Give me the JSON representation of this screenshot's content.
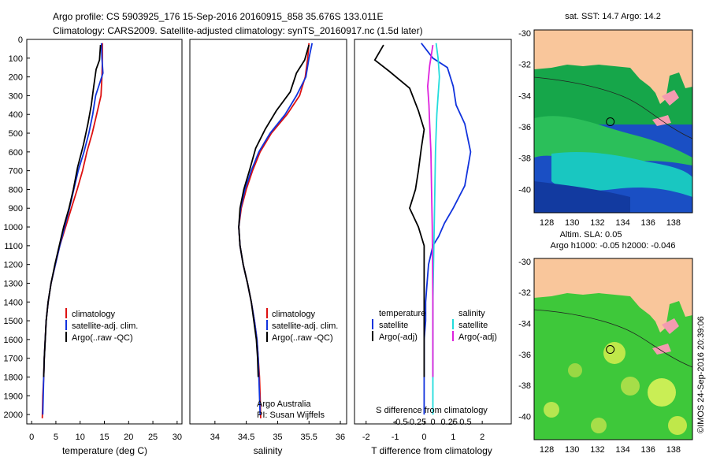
{
  "header": {
    "title_line1": "Argo profile: CS 5903925_176 15-Sep-2016 20160915_858 35.676S 133.011E",
    "title_line2": "Climatology: CARS2009. Satellite-adjusted climatology: synTS_20160917.nc (1.5d later)"
  },
  "colors": {
    "climatology": "#dd1111",
    "satellite": "#1133dd",
    "argo": "#000000",
    "salinity_satellite": "#22dddd",
    "salinity_argo": "#dd22dd",
    "land": "#f9c69b"
  },
  "chart_data": [
    {
      "type": "line",
      "id": "temperature",
      "xlabel": "temperature (deg C)",
      "xlim": [
        -1,
        31
      ],
      "ylim": [
        2050,
        0
      ],
      "xticks": [
        0,
        5,
        10,
        15,
        20,
        25,
        30
      ],
      "yticks": [
        0,
        100,
        200,
        300,
        400,
        500,
        600,
        700,
        800,
        900,
        1000,
        1100,
        1200,
        1300,
        1400,
        1500,
        1600,
        1700,
        1800,
        1900,
        2000
      ],
      "legend": [
        "climatology",
        "satellite-adj. clim.",
        "Argo(..raw -QC)"
      ],
      "legend_position": "lower-center",
      "series": [
        {
          "name": "climatology",
          "x": [
            14.6,
            14.6,
            14.5,
            14.3,
            13.4,
            12.5,
            11.4,
            10.5,
            9.4,
            8.2,
            7.0,
            5.8,
            4.9,
            4.0,
            3.4,
            3.0,
            2.8,
            2.6,
            2.5,
            2.3,
            2.2
          ],
          "y": [
            20,
            100,
            200,
            300,
            400,
            500,
            600,
            700,
            800,
            900,
            1000,
            1100,
            1200,
            1300,
            1400,
            1500,
            1600,
            1700,
            1800,
            1900,
            2020
          ]
        },
        {
          "name": "satellite-adj. clim.",
          "x": [
            14.4,
            14.5,
            14.7,
            13.2,
            12.6,
            11.8,
            10.8,
            9.6,
            8.7,
            7.8,
            6.8,
            5.8,
            4.9,
            4.0,
            3.4,
            3.0,
            2.8,
            2.6,
            2.5,
            2.4,
            2.3
          ],
          "y": [
            20,
            100,
            180,
            300,
            400,
            500,
            600,
            700,
            800,
            900,
            1000,
            1100,
            1200,
            1300,
            1400,
            1500,
            1600,
            1700,
            1800,
            1900,
            2000
          ]
        },
        {
          "name": "Argo(..raw -QC)",
          "x": [
            14.2,
            14.0,
            13.3,
            12.8,
            12.3,
            11.6,
            10.7,
            9.5,
            8.6,
            7.7,
            6.6,
            5.7,
            4.8,
            4.0,
            3.4,
            3.0,
            2.8,
            2.6,
            2.5
          ],
          "y": [
            30,
            110,
            160,
            250,
            350,
            450,
            560,
            680,
            800,
            900,
            1000,
            1100,
            1200,
            1300,
            1400,
            1500,
            1600,
            1700,
            1800
          ]
        }
      ]
    },
    {
      "type": "line",
      "id": "salinity",
      "xlabel": "salinity",
      "xlim": [
        33.6,
        36.1
      ],
      "ylim": [
        2050,
        0
      ],
      "xticks": [
        34,
        34.5,
        35,
        35.5,
        36
      ],
      "legend": [
        "climatology",
        "satellite-adj. clim.",
        "Argo(..raw -QC)"
      ],
      "legend_position": "lower-center",
      "annotation": [
        "Argo Australia",
        "PI: Susan Wijffels"
      ],
      "series": [
        {
          "name": "climatology",
          "x": [
            35.5,
            35.48,
            35.44,
            35.35,
            35.15,
            34.9,
            34.72,
            34.6,
            34.5,
            34.42,
            34.38,
            34.4,
            34.45,
            34.52,
            34.58,
            34.63,
            34.67,
            34.69,
            34.71,
            34.72,
            34.73
          ],
          "y": [
            20,
            100,
            200,
            300,
            400,
            500,
            600,
            700,
            800,
            900,
            1000,
            1100,
            1200,
            1300,
            1400,
            1500,
            1600,
            1700,
            1800,
            1900,
            2020
          ]
        },
        {
          "name": "satellite-adj. clim.",
          "x": [
            35.55,
            35.5,
            35.45,
            35.3,
            35.12,
            34.88,
            34.7,
            34.58,
            34.48,
            34.41,
            34.38,
            34.4,
            34.45,
            34.52,
            34.58,
            34.63,
            34.67,
            34.69,
            34.7,
            34.71,
            34.72
          ],
          "y": [
            20,
            100,
            200,
            300,
            400,
            500,
            600,
            700,
            800,
            900,
            1000,
            1100,
            1200,
            1300,
            1400,
            1500,
            1600,
            1700,
            1800,
            1900,
            2000
          ]
        },
        {
          "name": "Argo(..raw -QC)",
          "x": [
            35.5,
            35.43,
            35.3,
            35.2,
            34.98,
            34.8,
            34.65,
            34.55,
            34.46,
            34.4,
            34.38,
            34.4,
            34.45,
            34.52,
            34.58,
            34.62,
            34.66,
            34.68,
            34.69
          ],
          "y": [
            30,
            110,
            180,
            280,
            380,
            480,
            580,
            700,
            800,
            900,
            1000,
            1100,
            1200,
            1300,
            1400,
            1500,
            1600,
            1700,
            1800
          ]
        }
      ]
    },
    {
      "type": "line",
      "id": "differences",
      "xlabel": "T difference from climatology",
      "xlabel_top": "S difference from climatology",
      "xlim": [
        -2.4,
        3.0
      ],
      "ylim": [
        2050,
        0
      ],
      "xticks": [
        -2,
        -1,
        0,
        1,
        2
      ],
      "xticks_secondary": [
        -0.5,
        -0.25,
        0,
        0.25,
        0.5
      ],
      "legend_groups": [
        {
          "title": "temperature",
          "entries": [
            "satellite",
            "Argo(-adj)"
          ]
        },
        {
          "title": "salinity",
          "entries": [
            "satellite",
            "Argo(-adj)"
          ]
        }
      ],
      "series": [
        {
          "name": "temperature satellite",
          "x": [
            -0.1,
            0.3,
            0.8,
            1.0,
            1.1,
            1.4,
            1.6,
            1.4,
            1.0,
            0.7,
            0.5,
            0.3,
            0.15,
            0.1,
            0.05,
            0.05,
            0.0,
            0.0,
            0.0,
            0.0
          ],
          "y": [
            20,
            100,
            150,
            250,
            350,
            450,
            600,
            780,
            900,
            980,
            1050,
            1100,
            1200,
            1300,
            1400,
            1500,
            1600,
            1700,
            1800,
            2000
          ]
        },
        {
          "name": "temperature Argo(-adj)",
          "x": [
            -1.4,
            -1.7,
            -1.2,
            -0.5,
            -0.2,
            0.0,
            -0.1,
            -0.2,
            -0.3,
            -0.5,
            -0.2,
            0.0,
            0.0,
            0.0,
            0.0,
            0.0
          ],
          "y": [
            30,
            110,
            170,
            260,
            380,
            480,
            580,
            700,
            800,
            900,
            1000,
            1100,
            1300,
            1500,
            1700,
            1800
          ]
        },
        {
          "name": "salinity satellite",
          "x": [
            0.05,
            0.08,
            0.1,
            0.08,
            0.06,
            0.05,
            0.04,
            0.03,
            0.02,
            0.01,
            0.0,
            0.0,
            0.0,
            0.0
          ],
          "y": [
            20,
            100,
            200,
            300,
            400,
            500,
            600,
            800,
            1000,
            1200,
            1400,
            1600,
            1800,
            2000
          ]
        },
        {
          "name": "salinity Argo(-adj)",
          "x": [
            0.0,
            -0.05,
            -0.08,
            -0.06,
            -0.05,
            -0.03,
            -0.02,
            -0.01,
            0.0,
            0.0
          ],
          "y": [
            30,
            140,
            250,
            350,
            450,
            600,
            800,
            1000,
            1400,
            1800
          ]
        }
      ]
    },
    {
      "type": "heatmap",
      "id": "sst-map",
      "title": "sat. SST: 14.7 Argo: 14.2",
      "xticks": [
        128,
        130,
        132,
        134,
        136,
        138
      ],
      "yticks": [
        -30,
        -32,
        -34,
        -36,
        -38,
        -40
      ],
      "xlim": [
        127,
        139.5
      ],
      "ylim": [
        -41.5,
        -29.8
      ],
      "argo_position": {
        "lon": 133.011,
        "lat": -35.676
      }
    },
    {
      "type": "heatmap",
      "id": "sla-map",
      "title_line1": "Altim. SLA: 0.05",
      "title_line2": "Argo h1000: -0.05 h2000: -0.046",
      "xticks": [
        128,
        130,
        132,
        134,
        136,
        138
      ],
      "yticks": [
        -30,
        -32,
        -34,
        -36,
        -38,
        -40
      ],
      "xlim": [
        127,
        139.5
      ],
      "ylim": [
        -41.5,
        -29.8
      ],
      "argo_position": {
        "lon": 133.011,
        "lat": -35.676
      }
    }
  ],
  "credit": "©IMOS 24-Sep-2016 20:39:06"
}
